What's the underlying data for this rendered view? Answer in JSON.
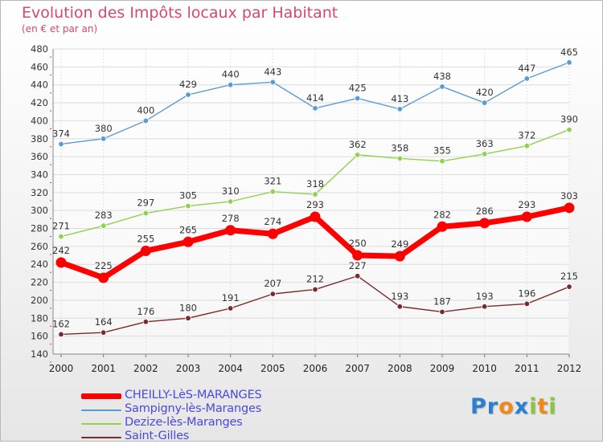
{
  "title": "Evolution des Impôts locaux par Habitant",
  "subtitle": "(en € et par an)",
  "logo": {
    "letters": [
      {
        "char": "P",
        "color": "#2a7fd0"
      },
      {
        "char": "r",
        "color": "#2a7fd0"
      },
      {
        "char": "o",
        "color": "#f08a16"
      },
      {
        "char": "x",
        "color": "#2a7fd0"
      },
      {
        "char": "i",
        "color": "#8cc63f"
      },
      {
        "char": "t",
        "color": "#f08a16"
      },
      {
        "char": "i",
        "color": "#8cc63f"
      }
    ]
  },
  "chart_data": {
    "type": "line",
    "title": "Evolution des Impôts locaux par Habitant",
    "subtitle": "(en € et par an)",
    "x": [
      "2000",
      "2001",
      "2002",
      "2003",
      "2004",
      "2005",
      "2006",
      "2007",
      "2008",
      "2009",
      "2010",
      "2011",
      "2012"
    ],
    "ylim": [
      140,
      480
    ],
    "yticks": [
      140,
      160,
      180,
      200,
      220,
      240,
      260,
      280,
      300,
      320,
      340,
      360,
      380,
      400,
      420,
      440,
      460,
      480
    ],
    "grid": true,
    "legend_position": "bottom-left",
    "series": [
      {
        "name": "CHEILLY-LèS-MARANGES",
        "color": "#ff0000",
        "values": [
          242,
          225,
          255,
          265,
          278,
          274,
          293,
          250,
          249,
          282,
          286,
          293,
          303
        ]
      },
      {
        "name": "Sampigny-lès-Maranges",
        "color": "#5b9bd5",
        "values": [
          374,
          380,
          400,
          429,
          440,
          443,
          414,
          425,
          413,
          438,
          420,
          447,
          465
        ]
      },
      {
        "name": "Dezize-lès-Maranges",
        "color": "#8fd24f",
        "values": [
          271,
          283,
          297,
          305,
          310,
          321,
          318,
          362,
          358,
          355,
          363,
          372,
          390
        ]
      },
      {
        "name": "Saint-Gilles",
        "color": "#7a2a2a",
        "values": [
          162,
          164,
          176,
          180,
          191,
          207,
          212,
          227,
          193,
          187,
          193,
          196,
          215
        ]
      }
    ]
  }
}
